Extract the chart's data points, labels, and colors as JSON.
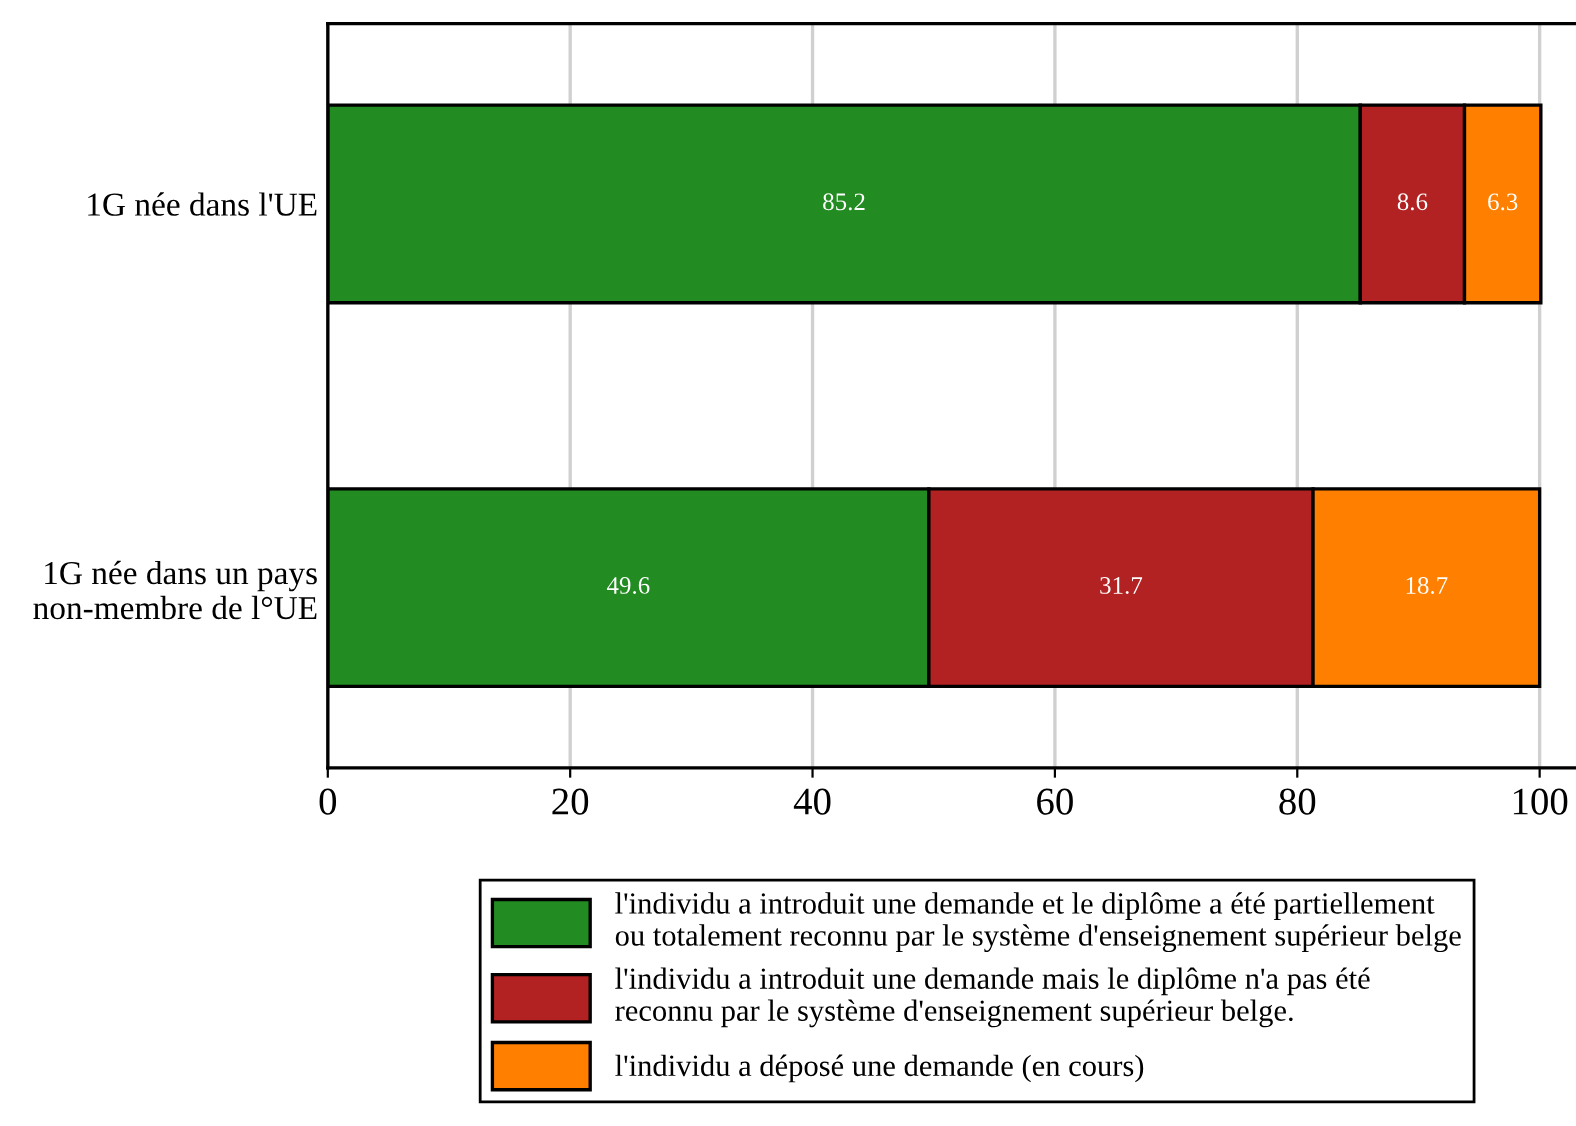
{
  "chart_data": {
    "type": "bar",
    "orientation": "horizontal",
    "stacked": true,
    "categories": [
      "1G née dans l'UE",
      "1G née dans un pays\nnon-membre de l°UE"
    ],
    "series": [
      {
        "name": "l'individu a introduit une demande et le diplôme a été partiellement\nou totalement reconnu par le système d'enseignement supérieur belge",
        "color": "#228b22",
        "values": [
          85.2,
          49.6
        ]
      },
      {
        "name": "l'individu a introduit une demande mais le diplôme n'a pas été\nreconnu par le système d'enseignement supérieur belge.",
        "color": "#b22222",
        "values": [
          8.6,
          31.7
        ]
      },
      {
        "name": "l'individu a déposé une demande (en cours)",
        "color": "#ff7f00",
        "values": [
          6.3,
          18.7
        ]
      }
    ],
    "xlim": [
      0,
      103
    ],
    "xticks": [
      0,
      20,
      40,
      60,
      80,
      100
    ],
    "grid": "x",
    "legend": "bottom",
    "data_labels": true
  }
}
